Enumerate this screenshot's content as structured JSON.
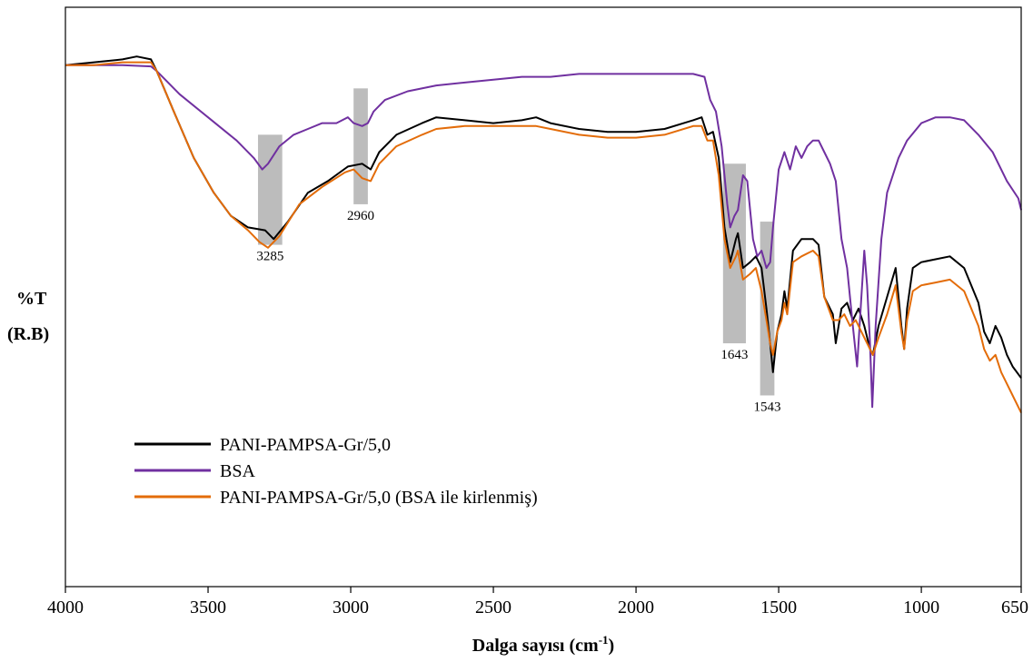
{
  "chart_data": {
    "type": "line",
    "xlabel_main": "Dalga sayısı (cm",
    "xlabel_sup": "-1",
    "xlabel_end": ")",
    "ylabel_line1": "%T",
    "ylabel_line2": "(R.B)",
    "xlim": [
      4000,
      650
    ],
    "x_reversed": true,
    "x_ticks": [
      4000,
      3500,
      3000,
      2500,
      2000,
      1500,
      1000,
      650
    ],
    "x_tick_labels": [
      "4000",
      "3500",
      "3000",
      "2500",
      "2000",
      "1500",
      "1000",
      "650"
    ],
    "y_ticks_shown": false,
    "ylim": [
      0,
      100
    ],
    "grid": false,
    "legend_position": "bottom-left",
    "highlight_bands": [
      {
        "label": "3285",
        "x_from": 3325,
        "x_to": 3240,
        "y_from": 78,
        "y_to": 59
      },
      {
        "label": "2960",
        "x_from": 2990,
        "x_to": 2940,
        "y_from": 86,
        "y_to": 66
      },
      {
        "label": "1643",
        "x_from": 1695,
        "x_to": 1615,
        "y_from": 73,
        "y_to": 42
      },
      {
        "label": "1543",
        "x_from": 1565,
        "x_to": 1515,
        "y_from": 63,
        "y_to": 33
      }
    ],
    "series": [
      {
        "name": "PANI-PAMPSA-Gr/5,0",
        "color": "#000000",
        "points": [
          [
            4000,
            90
          ],
          [
            3900,
            90.5
          ],
          [
            3800,
            91
          ],
          [
            3750,
            91.5
          ],
          [
            3700,
            91
          ],
          [
            3680,
            89
          ],
          [
            3620,
            82
          ],
          [
            3550,
            74
          ],
          [
            3480,
            68
          ],
          [
            3420,
            64
          ],
          [
            3360,
            62
          ],
          [
            3300,
            61.5
          ],
          [
            3270,
            60
          ],
          [
            3220,
            63
          ],
          [
            3150,
            68
          ],
          [
            3080,
            70
          ],
          [
            3010,
            72.5
          ],
          [
            2960,
            73
          ],
          [
            2930,
            72
          ],
          [
            2900,
            75
          ],
          [
            2840,
            78
          ],
          [
            2750,
            80
          ],
          [
            2700,
            81
          ],
          [
            2600,
            80.5
          ],
          [
            2500,
            80
          ],
          [
            2400,
            80.5
          ],
          [
            2350,
            81
          ],
          [
            2300,
            80
          ],
          [
            2200,
            79
          ],
          [
            2100,
            78.5
          ],
          [
            2000,
            78.5
          ],
          [
            1900,
            79
          ],
          [
            1800,
            80.5
          ],
          [
            1770,
            81
          ],
          [
            1750,
            78
          ],
          [
            1730,
            78.5
          ],
          [
            1710,
            74
          ],
          [
            1690,
            62
          ],
          [
            1670,
            56
          ],
          [
            1650,
            60
          ],
          [
            1643,
            61
          ],
          [
            1625,
            55
          ],
          [
            1600,
            56
          ],
          [
            1580,
            57
          ],
          [
            1560,
            55
          ],
          [
            1543,
            48
          ],
          [
            1530,
            42
          ],
          [
            1520,
            37
          ],
          [
            1505,
            44
          ],
          [
            1490,
            47
          ],
          [
            1480,
            51
          ],
          [
            1470,
            48
          ],
          [
            1450,
            58
          ],
          [
            1420,
            60
          ],
          [
            1380,
            60
          ],
          [
            1360,
            59
          ],
          [
            1340,
            50
          ],
          [
            1310,
            47
          ],
          [
            1300,
            42
          ],
          [
            1280,
            48
          ],
          [
            1260,
            49
          ],
          [
            1240,
            46
          ],
          [
            1220,
            48
          ],
          [
            1200,
            45
          ],
          [
            1180,
            41
          ],
          [
            1170,
            40
          ],
          [
            1150,
            45
          ],
          [
            1120,
            50
          ],
          [
            1090,
            55
          ],
          [
            1070,
            45
          ],
          [
            1060,
            41
          ],
          [
            1050,
            48
          ],
          [
            1030,
            55
          ],
          [
            1000,
            56
          ],
          [
            950,
            56.5
          ],
          [
            900,
            57
          ],
          [
            850,
            55
          ],
          [
            800,
            49
          ],
          [
            780,
            44
          ],
          [
            760,
            42
          ],
          [
            740,
            45
          ],
          [
            720,
            43
          ],
          [
            700,
            40
          ],
          [
            680,
            38
          ],
          [
            650,
            36
          ]
        ]
      },
      {
        "name": "BSA",
        "color": "#7030A0",
        "points": [
          [
            4000,
            90
          ],
          [
            3900,
            90
          ],
          [
            3800,
            90
          ],
          [
            3700,
            89.8
          ],
          [
            3680,
            89
          ],
          [
            3600,
            85
          ],
          [
            3500,
            81
          ],
          [
            3400,
            77
          ],
          [
            3340,
            74
          ],
          [
            3310,
            72
          ],
          [
            3290,
            73
          ],
          [
            3250,
            76
          ],
          [
            3200,
            78
          ],
          [
            3150,
            79
          ],
          [
            3100,
            80
          ],
          [
            3050,
            80
          ],
          [
            3010,
            81
          ],
          [
            2990,
            80
          ],
          [
            2960,
            79.5
          ],
          [
            2940,
            80
          ],
          [
            2920,
            82
          ],
          [
            2880,
            84
          ],
          [
            2800,
            85.5
          ],
          [
            2700,
            86.5
          ],
          [
            2600,
            87
          ],
          [
            2500,
            87.5
          ],
          [
            2400,
            88
          ],
          [
            2300,
            88
          ],
          [
            2200,
            88.5
          ],
          [
            2100,
            88.5
          ],
          [
            2000,
            88.5
          ],
          [
            1900,
            88.5
          ],
          [
            1800,
            88.5
          ],
          [
            1760,
            88
          ],
          [
            1740,
            84
          ],
          [
            1720,
            82
          ],
          [
            1700,
            76
          ],
          [
            1680,
            66
          ],
          [
            1670,
            62
          ],
          [
            1655,
            64
          ],
          [
            1643,
            65
          ],
          [
            1625,
            71
          ],
          [
            1610,
            70
          ],
          [
            1590,
            60
          ],
          [
            1575,
            57
          ],
          [
            1560,
            58
          ],
          [
            1543,
            55
          ],
          [
            1530,
            56
          ],
          [
            1520,
            62
          ],
          [
            1500,
            72
          ],
          [
            1480,
            75
          ],
          [
            1460,
            72
          ],
          [
            1440,
            76
          ],
          [
            1420,
            74
          ],
          [
            1400,
            76
          ],
          [
            1380,
            77
          ],
          [
            1360,
            77
          ],
          [
            1340,
            75
          ],
          [
            1320,
            73
          ],
          [
            1300,
            70
          ],
          [
            1280,
            60
          ],
          [
            1260,
            55
          ],
          [
            1240,
            45
          ],
          [
            1225,
            38
          ],
          [
            1210,
            50
          ],
          [
            1200,
            58
          ],
          [
            1190,
            52
          ],
          [
            1180,
            42
          ],
          [
            1172,
            31
          ],
          [
            1160,
            45
          ],
          [
            1140,
            60
          ],
          [
            1120,
            68
          ],
          [
            1080,
            74
          ],
          [
            1050,
            77
          ],
          [
            1000,
            80
          ],
          [
            950,
            81
          ],
          [
            900,
            81
          ],
          [
            850,
            80.5
          ],
          [
            800,
            78
          ],
          [
            750,
            75
          ],
          [
            700,
            70
          ],
          [
            660,
            67
          ],
          [
            650,
            65
          ]
        ]
      },
      {
        "name": "PANI-PAMPSA-Gr/5,0 (BSA ile kirlenmiş)",
        "color": "#E36C09",
        "points": [
          [
            4000,
            90
          ],
          [
            3900,
            90
          ],
          [
            3800,
            90.5
          ],
          [
            3750,
            90.5
          ],
          [
            3700,
            90.5
          ],
          [
            3680,
            89
          ],
          [
            3620,
            82
          ],
          [
            3550,
            74
          ],
          [
            3480,
            68
          ],
          [
            3420,
            64
          ],
          [
            3360,
            61.5
          ],
          [
            3320,
            59.5
          ],
          [
            3290,
            58.5
          ],
          [
            3250,
            60.5
          ],
          [
            3180,
            66
          ],
          [
            3100,
            69
          ],
          [
            3020,
            71.5
          ],
          [
            2990,
            72
          ],
          [
            2960,
            70.5
          ],
          [
            2930,
            70
          ],
          [
            2900,
            73
          ],
          [
            2840,
            76
          ],
          [
            2750,
            78
          ],
          [
            2700,
            79
          ],
          [
            2600,
            79.5
          ],
          [
            2500,
            79.5
          ],
          [
            2400,
            79.5
          ],
          [
            2350,
            79.5
          ],
          [
            2300,
            79
          ],
          [
            2200,
            78
          ],
          [
            2100,
            77.5
          ],
          [
            2000,
            77.5
          ],
          [
            1900,
            78
          ],
          [
            1800,
            79.5
          ],
          [
            1770,
            79.5
          ],
          [
            1750,
            77
          ],
          [
            1730,
            77
          ],
          [
            1710,
            71
          ],
          [
            1690,
            60
          ],
          [
            1670,
            55
          ],
          [
            1650,
            57
          ],
          [
            1643,
            58
          ],
          [
            1625,
            53
          ],
          [
            1600,
            54
          ],
          [
            1580,
            55
          ],
          [
            1560,
            51
          ],
          [
            1543,
            46
          ],
          [
            1530,
            42
          ],
          [
            1520,
            40
          ],
          [
            1505,
            44
          ],
          [
            1490,
            46
          ],
          [
            1480,
            49
          ],
          [
            1470,
            47
          ],
          [
            1450,
            56
          ],
          [
            1420,
            57
          ],
          [
            1380,
            58
          ],
          [
            1360,
            57
          ],
          [
            1340,
            50
          ],
          [
            1310,
            46
          ],
          [
            1290,
            46
          ],
          [
            1270,
            47
          ],
          [
            1250,
            45
          ],
          [
            1230,
            46
          ],
          [
            1210,
            44
          ],
          [
            1190,
            42
          ],
          [
            1170,
            40
          ],
          [
            1150,
            43
          ],
          [
            1120,
            47
          ],
          [
            1090,
            52
          ],
          [
            1070,
            44
          ],
          [
            1060,
            41
          ],
          [
            1050,
            46
          ],
          [
            1030,
            51
          ],
          [
            1000,
            52
          ],
          [
            950,
            52.5
          ],
          [
            900,
            53
          ],
          [
            850,
            51
          ],
          [
            800,
            45
          ],
          [
            780,
            41
          ],
          [
            760,
            39
          ],
          [
            740,
            40
          ],
          [
            720,
            37
          ],
          [
            700,
            35
          ],
          [
            680,
            33
          ],
          [
            650,
            30
          ]
        ]
      }
    ]
  }
}
